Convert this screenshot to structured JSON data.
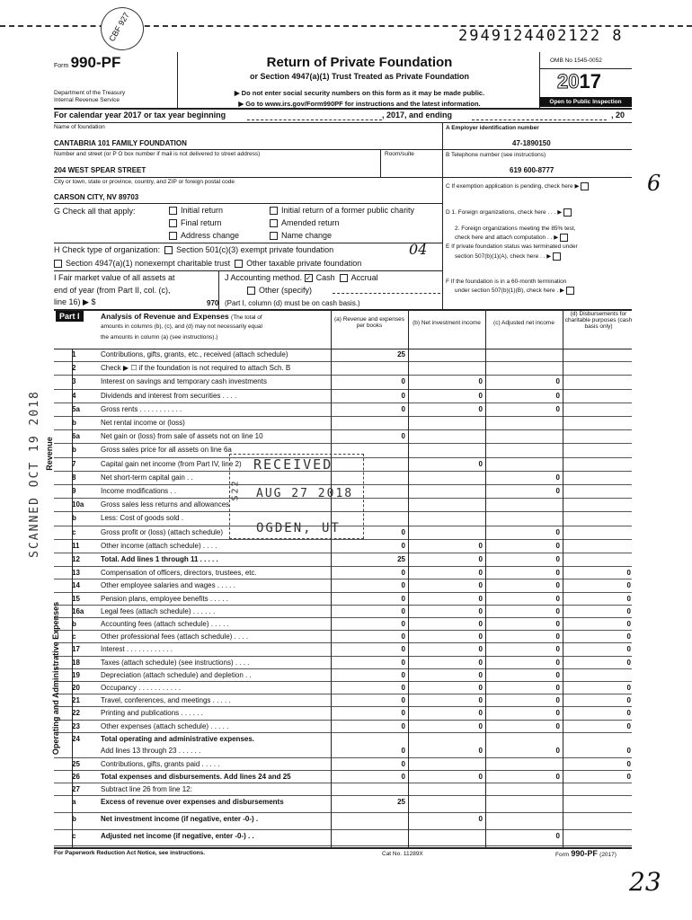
{
  "dln": "2949124402122  8",
  "circle_stamp": "CBF 927",
  "form": {
    "prefix": "Form",
    "number": "990-PF",
    "dept1": "Department of the Treasury",
    "dept2": "Internal Revenue Service",
    "title": "Return of Private Foundation",
    "subtitle": "or Section 4947(a)(1) Trust Treated as Private Foundation",
    "note1": "▶ Do not enter social security numbers on this form as it may be made public.",
    "note2": "▶ Go to www.irs.gov/Form990PF for instructions and the latest information.",
    "omb": "OMB No 1545-0052",
    "year_outline": "20",
    "year_bold": "17",
    "open": "Open to Public Inspection"
  },
  "calendar": {
    "label": "For calendar year 2017 or tax year beginning",
    "mid": ", 2017, and ending",
    "end": ", 20"
  },
  "org": {
    "name_label": "Name of foundation",
    "name": "CANTABRIA 101 FAMILY FOUNDATION",
    "street_label": "Number and street (or P O box number if mail is not delivered to street address)",
    "room_label": "Room/suite",
    "street": "204 WEST SPEAR STREET",
    "city_label": "City or town, state or province, country, and ZIP or foreign postal code",
    "city": "CARSON CITY, NV 89703",
    "ein_label": "A  Employer identification number",
    "ein": "47-1890150",
    "phone_label": "B  Telephone number (see instructions)",
    "phone": "619 600-8777",
    "c_label": "C  If exemption application is pending, check here ▶",
    "d1_label": "D  1. Foreign organizations, check here  . . . ▶",
    "d2_label": "2. Foreign organizations meeting the 85% test,",
    "d2_label2": "check here and attach computation  . . ▶",
    "e_label": "E  If private foundation status was terminated under",
    "e_label2": "section 507(b)(1)(A), check here  . . ▶",
    "f_label": "F  If the foundation is in a 60-month termination",
    "f_label2": "under section 507(b)(1)(B), check here  . ▶"
  },
  "g": {
    "label": "G  Check all that apply:",
    "opts": [
      "Initial return",
      "Final return",
      "Address change",
      "Initial return of a former public charity",
      "Amended return",
      "Name change"
    ]
  },
  "h": {
    "label": "H  Check type of organization:",
    "opt1": "Section 501(c)(3) exempt private foundation",
    "opt2": "Section 4947(a)(1) nonexempt charitable trust",
    "opt3": "Other taxable private foundation"
  },
  "i": {
    "l1": "I  Fair market value of all assets at",
    "l2": "end of year  (from Part II, col. (c),",
    "l3": "line 16) ▶ $",
    "value": "970"
  },
  "j": {
    "label": "J  Accounting method.",
    "cash": "Cash",
    "accrual": "Accrual",
    "other": "Other (specify)",
    "note": "(Part I, column (d) must be on cash basis.)",
    "cash_checked": true
  },
  "part1": {
    "tag": "Part I",
    "title": "Analysis of Revenue and Expenses",
    "desc1": "(The total of",
    "desc2": "amounts in columns (b), (c), and (d) may not necessarily equal",
    "desc3": "the amounts in column (a) (see instructions).)",
    "cols": [
      "(a) Revenue and expenses per books",
      "(b) Net investment income",
      "(c) Adjusted net income",
      "(d) Disbursements for charitable purposes (cash basis only)"
    ],
    "side_revenue": "Revenue",
    "side_expenses": "Operating and Administrative Expenses"
  },
  "rows": [
    {
      "n": "1",
      "l": "Contributions, gifts, grants, etc., received (attach schedule)",
      "v": [
        "25",
        "",
        "",
        ""
      ]
    },
    {
      "n": "2",
      "l": "Check ▶ ☐ if the foundation is not required to attach Sch. B",
      "v": [
        "",
        "",
        "",
        ""
      ]
    },
    {
      "n": "3",
      "l": "Interest on savings and temporary cash investments",
      "v": [
        "0",
        "0",
        "0",
        ""
      ]
    },
    {
      "n": "4",
      "l": "Dividends and interest from securities  . . . .",
      "v": [
        "0",
        "0",
        "0",
        ""
      ]
    },
    {
      "n": "5a",
      "l": "Gross rents . . . . . . . . . . .",
      "v": [
        "0",
        "0",
        "0",
        ""
      ]
    },
    {
      "n": "b",
      "l": "Net rental income or (loss)",
      "v": [
        "",
        "",
        "",
        ""
      ]
    },
    {
      "n": "6a",
      "l": "Net gain or (loss) from sale of assets not on line 10",
      "v": [
        "0",
        "",
        "",
        ""
      ]
    },
    {
      "n": "b",
      "l": "Gross sales price for all assets on line 6a",
      "v": [
        "",
        "",
        "",
        ""
      ]
    },
    {
      "n": "7",
      "l": "Capital gain net income (from Part IV, line 2)",
      "v": [
        "",
        "0",
        "",
        ""
      ]
    },
    {
      "n": "8",
      "l": "Net short-term capital gain . .",
      "v": [
        "",
        "",
        "0",
        ""
      ]
    },
    {
      "n": "9",
      "l": "Income modifications  . .",
      "v": [
        "",
        "",
        "0",
        ""
      ]
    },
    {
      "n": "10a",
      "l": "Gross sales less returns and allowances",
      "v": [
        "",
        "",
        "",
        ""
      ]
    },
    {
      "n": "b",
      "l": "Less: Cost of goods sold  .",
      "v": [
        "",
        "",
        "",
        ""
      ]
    },
    {
      "n": "c",
      "l": "Gross profit or (loss) (attach schedule)",
      "v": [
        "0",
        "",
        "0",
        ""
      ]
    },
    {
      "n": "11",
      "l": "Other income (attach schedule) . . . .",
      "v": [
        "0",
        "0",
        "0",
        ""
      ]
    },
    {
      "n": "12",
      "l": "Total. Add lines 1 through 11 . . . . .",
      "v": [
        "25",
        "0",
        "0",
        ""
      ],
      "bold": true
    },
    {
      "n": "13",
      "l": "Compensation of officers, directors, trustees, etc.",
      "v": [
        "0",
        "0",
        "0",
        "0"
      ]
    },
    {
      "n": "14",
      "l": "Other employee salaries and wages . . . . .",
      "v": [
        "0",
        "0",
        "0",
        "0"
      ]
    },
    {
      "n": "15",
      "l": "Pension plans, employee benefits  . . . . .",
      "v": [
        "0",
        "0",
        "0",
        "0"
      ]
    },
    {
      "n": "16a",
      "l": "Legal fees (attach schedule) . . . . . .",
      "v": [
        "0",
        "0",
        "0",
        "0"
      ]
    },
    {
      "n": "b",
      "l": "Accounting fees (attach schedule) . . . . .",
      "v": [
        "0",
        "0",
        "0",
        "0"
      ]
    },
    {
      "n": "c",
      "l": "Other professional fees (attach schedule) . . . .",
      "v": [
        "0",
        "0",
        "0",
        "0"
      ]
    },
    {
      "n": "17",
      "l": "Interest  . . . . . . . . . . . .",
      "v": [
        "0",
        "0",
        "0",
        "0"
      ]
    },
    {
      "n": "18",
      "l": "Taxes (attach schedule) (see instructions) . . . .",
      "v": [
        "0",
        "0",
        "0",
        "0"
      ]
    },
    {
      "n": "19",
      "l": "Depreciation (attach schedule) and depletion . .",
      "v": [
        "0",
        "0",
        "0",
        ""
      ]
    },
    {
      "n": "20",
      "l": "Occupancy . . . . . . . . . . .",
      "v": [
        "0",
        "0",
        "0",
        "0"
      ]
    },
    {
      "n": "21",
      "l": "Travel, conferences, and meetings . . . . .",
      "v": [
        "0",
        "0",
        "0",
        "0"
      ]
    },
    {
      "n": "22",
      "l": "Printing and publications  . . . . . .",
      "v": [
        "0",
        "0",
        "0",
        "0"
      ]
    },
    {
      "n": "23",
      "l": "Other expenses (attach schedule) . . . . .",
      "v": [
        "0",
        "0",
        "0",
        "0"
      ]
    },
    {
      "n": "24",
      "l": "Total operating and administrative expenses.",
      "l2": "Add lines 13 through 23 . . . . . .",
      "v": [
        "0",
        "0",
        "0",
        "0"
      ],
      "bold": true
    },
    {
      "n": "25",
      "l": "Contributions, gifts, grants paid  . . . . .",
      "v": [
        "0",
        "",
        "",
        "0"
      ]
    },
    {
      "n": "26",
      "l": "Total expenses and disbursements. Add lines 24 and 25",
      "v": [
        "0",
        "0",
        "0",
        "0"
      ],
      "bold": true
    },
    {
      "n": "27",
      "l": "Subtract line 26 from line 12:",
      "v": [
        "",
        "",
        "",
        ""
      ]
    },
    {
      "n": "a",
      "l": "Excess of revenue over expenses and disbursements",
      "v": [
        "25",
        "",
        "",
        ""
      ],
      "bold": true
    },
    {
      "n": "b",
      "l": "Net investment income (if negative, enter -0-)  .",
      "v": [
        "",
        "0",
        "",
        ""
      ],
      "bold": true
    },
    {
      "n": "c",
      "l": "Adjusted net income (if negative, enter -0-)  . .",
      "v": [
        "",
        "",
        "0",
        ""
      ],
      "bold": true
    }
  ],
  "footer": {
    "left": "For Paperwork Reduction Act Notice, see instructions.",
    "mid": "Cat No. 11289X",
    "right_prefix": "Form",
    "right_form": "990-PF",
    "right_year": "(2017)"
  },
  "stamps": {
    "received": "RECEIVED",
    "date": "AUG 27 2018",
    "place": "OGDEN, UT",
    "code": "S22",
    "scanned": "SCANNED OCT 19 2018"
  },
  "handwritten": {
    "top_right": "6",
    "mid": "04",
    "bottom": "23"
  }
}
